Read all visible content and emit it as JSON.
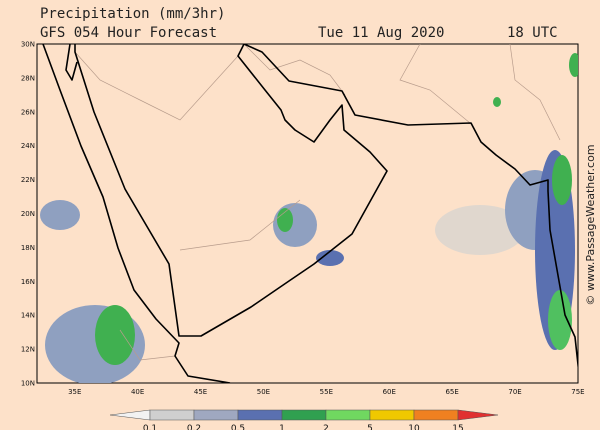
{
  "header": {
    "title": "Precipitation (mm/3hr)",
    "subtitle": "GFS 054 Hour Forecast",
    "date": "Tue 11 Aug 2020",
    "time": "18 UTC"
  },
  "map": {
    "lat_labels": [
      "30N",
      "28N",
      "26N",
      "24N",
      "22N",
      "20N",
      "18N",
      "16N",
      "14N",
      "12N",
      "10N"
    ],
    "lon_labels": [
      "35E",
      "40E",
      "45E",
      "50E",
      "55E",
      "60E",
      "65E",
      "70E",
      "75E"
    ]
  },
  "legend": {
    "labels": [
      "0.1",
      "0.2",
      "0.5",
      "1",
      "2",
      "5",
      "10",
      "15"
    ]
  },
  "watermark": "© www.PassageWeather.com"
}
